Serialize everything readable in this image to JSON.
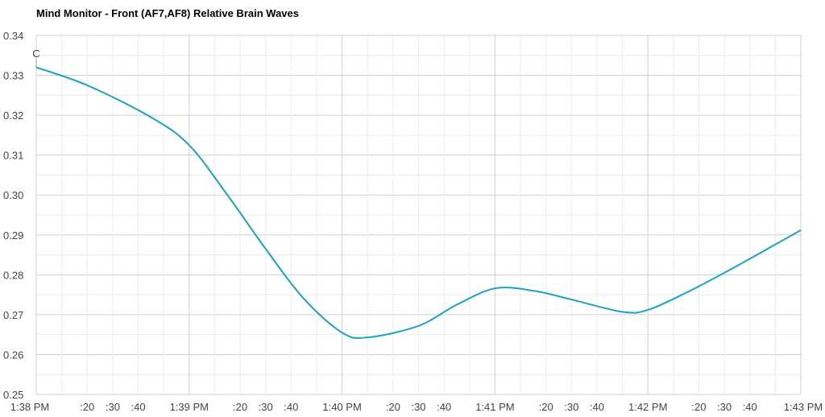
{
  "chart_data": {
    "type": "line",
    "title": "Mind Monitor - Front (AF7,AF8) Relative Brain Waves",
    "xlabel": "",
    "ylabel": "",
    "x_unit": "seconds after 1:38 PM",
    "xlim": [
      0,
      300
    ],
    "ylim": [
      0.25,
      0.34
    ],
    "grid": true,
    "y_ticks": [
      "0.25",
      "0.26",
      "0.27",
      "0.28",
      "0.29",
      "0.30",
      "0.31",
      "0.32",
      "0.33",
      "0.34"
    ],
    "x_ticks": [
      {
        "t": 0,
        "label": "1:38 PM"
      },
      {
        "t": 20,
        "label": ":20"
      },
      {
        "t": 30,
        "label": ":30"
      },
      {
        "t": 40,
        "label": ":40"
      },
      {
        "t": 60,
        "label": "1:39 PM"
      },
      {
        "t": 80,
        "label": ":20"
      },
      {
        "t": 90,
        "label": ":30"
      },
      {
        "t": 100,
        "label": ":40"
      },
      {
        "t": 120,
        "label": "1:40 PM"
      },
      {
        "t": 140,
        "label": ":20"
      },
      {
        "t": 150,
        "label": ":30"
      },
      {
        "t": 160,
        "label": ":40"
      },
      {
        "t": 180,
        "label": "1:41 PM"
      },
      {
        "t": 200,
        "label": ":20"
      },
      {
        "t": 210,
        "label": ":30"
      },
      {
        "t": 220,
        "label": ":40"
      },
      {
        "t": 240,
        "label": "1:42 PM"
      },
      {
        "t": 260,
        "label": ":20"
      },
      {
        "t": 270,
        "label": ":30"
      },
      {
        "t": 280,
        "label": ":40"
      },
      {
        "t": 300,
        "label": "1:43 PM"
      }
    ],
    "annotation": {
      "t": 0,
      "label": "C"
    },
    "series": [
      {
        "name": "Relative Brain Waves",
        "color": "#1aa3c4",
        "x": [
          0,
          20,
          45,
          60,
          75,
          90,
          105,
          120,
          130,
          150,
          165,
          180,
          195,
          210,
          230,
          240,
          255,
          270,
          285,
          300
        ],
        "y": [
          0.332,
          0.3275,
          0.3195,
          0.3125,
          0.3,
          0.2865,
          0.274,
          0.2655,
          0.2643,
          0.2672,
          0.2725,
          0.2766,
          0.276,
          0.2738,
          0.2707,
          0.2712,
          0.2755,
          0.2805,
          0.2858,
          0.2912
        ]
      }
    ]
  }
}
